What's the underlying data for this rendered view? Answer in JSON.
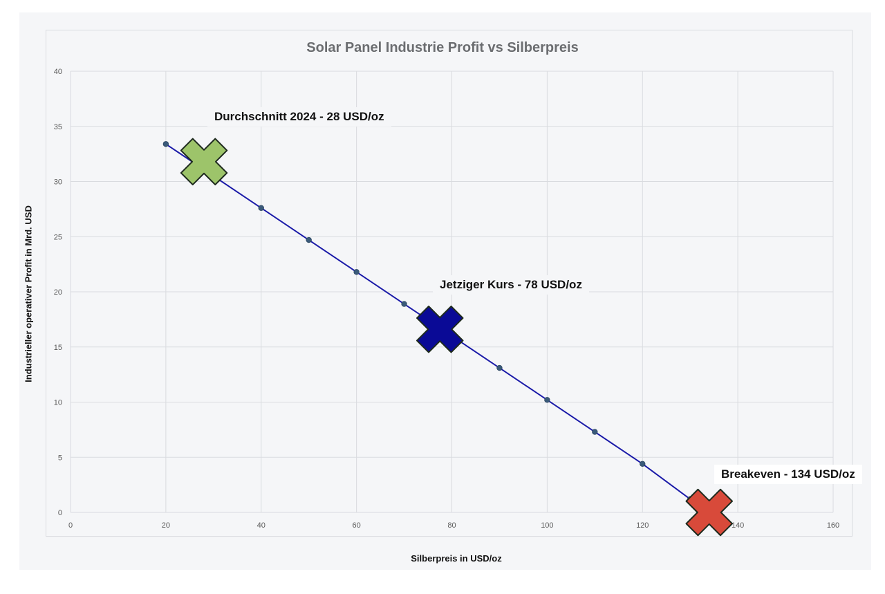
{
  "chart_data": {
    "type": "line",
    "title": "Solar Panel Industrie Profit vs Silberpreis",
    "xlabel": "Silberpreis in USD/oz",
    "ylabel": "Industrieller operativer Profit in Mrd. USD",
    "xlim": [
      0,
      160
    ],
    "ylim": [
      0,
      40
    ],
    "xticks": [
      0,
      20,
      40,
      60,
      80,
      100,
      120,
      140,
      160
    ],
    "yticks": [
      0,
      5,
      10,
      15,
      20,
      25,
      30,
      35,
      40
    ],
    "grid": true,
    "series": [
      {
        "x": [
          20,
          30,
          40,
          50,
          60,
          70,
          80,
          90,
          100,
          110,
          120,
          130
        ],
        "y": [
          33.4,
          30.5,
          27.6,
          24.7,
          21.8,
          18.9,
          16.0,
          13.1,
          10.2,
          7.3,
          4.4,
          1.2
        ],
        "color": "#1a1aa8"
      }
    ],
    "markers": [
      {
        "label": "Durchschnitt 2024 - 28 USD/oz",
        "x": 28,
        "y": 31.8,
        "color": "#9dc46a"
      },
      {
        "label": "Jetziger Kurs - 78 USD/oz",
        "x": 77.5,
        "y": 16.6,
        "color": "#0a0a96"
      },
      {
        "label": "Breakeven - 134 USD/oz",
        "x": 134,
        "y": 0,
        "color": "#d84a3a"
      }
    ]
  }
}
